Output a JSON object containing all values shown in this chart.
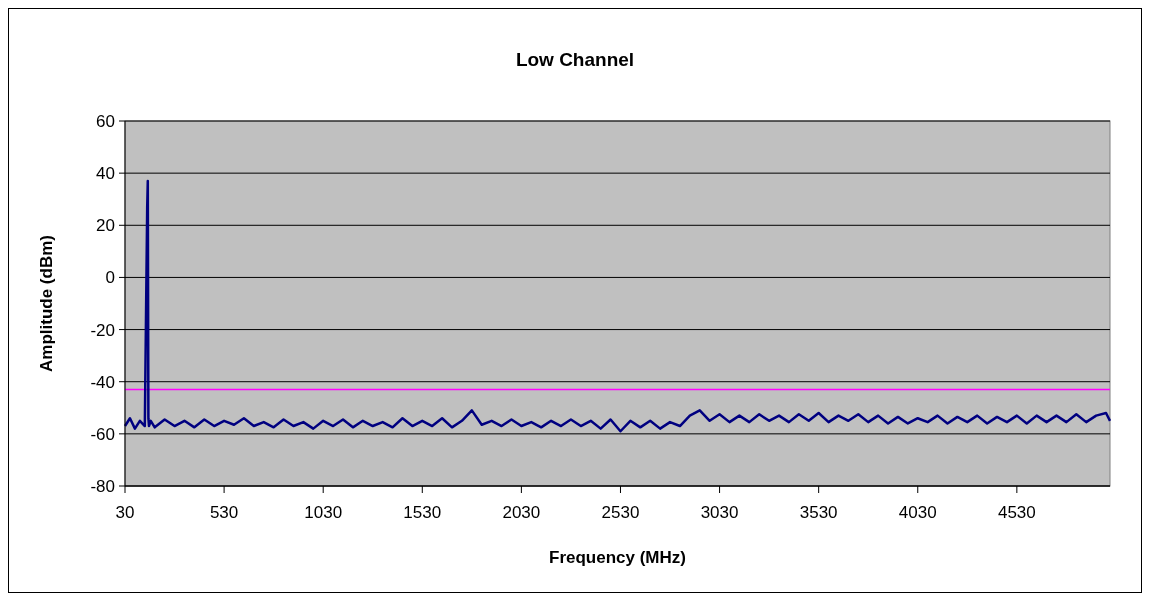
{
  "chart_data": {
    "type": "line",
    "title": "Low Channel",
    "xlabel": "Frequency (MHz)",
    "ylabel": "Amplitude (dBm)",
    "x": [
      30,
      55,
      80,
      105,
      130,
      142,
      145,
      148,
      151,
      160,
      180,
      230,
      280,
      330,
      380,
      430,
      480,
      530,
      580,
      630,
      680,
      730,
      780,
      830,
      880,
      930,
      980,
      1030,
      1080,
      1130,
      1180,
      1230,
      1280,
      1330,
      1380,
      1430,
      1480,
      1530,
      1580,
      1630,
      1680,
      1730,
      1780,
      1830,
      1880,
      1930,
      1980,
      2030,
      2080,
      2130,
      2180,
      2230,
      2280,
      2330,
      2380,
      2430,
      2480,
      2530,
      2580,
      2630,
      2680,
      2730,
      2780,
      2830,
      2880,
      2930,
      2980,
      3030,
      3080,
      3130,
      3180,
      3230,
      3280,
      3330,
      3380,
      3430,
      3480,
      3530,
      3580,
      3630,
      3680,
      3730,
      3780,
      3830,
      3880,
      3930,
      3980,
      4030,
      4080,
      4130,
      4180,
      4230,
      4280,
      4330,
      4380,
      4430,
      4480,
      4530,
      4580,
      4630,
      4680,
      4730,
      4780,
      4830,
      4880,
      4930,
      4980,
      5000
    ],
    "series": [
      {
        "color": "#000080",
        "values": [
          -57,
          -54,
          -58,
          -55,
          -57,
          27,
          37,
          -54,
          -57,
          -55,
          -57.5,
          -54.5,
          -57,
          -55,
          -57.5,
          -54.5,
          -57,
          -55,
          -56.5,
          -54,
          -57,
          -55.5,
          -57.5,
          -54.5,
          -57,
          -55.5,
          -58,
          -55,
          -57,
          -54.5,
          -57.5,
          -55,
          -57,
          -55.5,
          -57.5,
          -54,
          -57,
          -55,
          -57,
          -54,
          -57.5,
          -55,
          -51,
          -56.5,
          -55,
          -57,
          -54.5,
          -57,
          -55.5,
          -57.5,
          -55,
          -57,
          -54.5,
          -57,
          -55,
          -58,
          -54.5,
          -59,
          -55,
          -57.5,
          -55,
          -58,
          -55.5,
          -57,
          -53,
          -51,
          -55,
          -52.5,
          -55.5,
          -53,
          -55.5,
          -52.5,
          -55,
          -53,
          -55.5,
          -52.5,
          -55,
          -52,
          -55.5,
          -53,
          -55,
          -52.5,
          -55.5,
          -53,
          -56,
          -53.5,
          -56,
          -54,
          -55.5,
          -53,
          -56,
          -53.5,
          -55.5,
          -53,
          -56,
          -53.5,
          -55.5,
          -53,
          -56,
          -53,
          -55.5,
          -53,
          -55.5,
          -52.5,
          -55.5,
          -53,
          -52,
          -55
        ]
      }
    ],
    "xlim": [
      30,
      5000
    ],
    "xticks": [
      30,
      530,
      1030,
      1530,
      2030,
      2530,
      3030,
      3530,
      4030,
      4530
    ],
    "ylim": [
      -80,
      60
    ],
    "yticks": [
      -80,
      -60,
      -40,
      -20,
      0,
      20,
      40,
      60
    ],
    "grid": "y",
    "ref_lines": [
      {
        "axis": "y",
        "value": -43,
        "color": "#ff00ff"
      }
    ]
  }
}
